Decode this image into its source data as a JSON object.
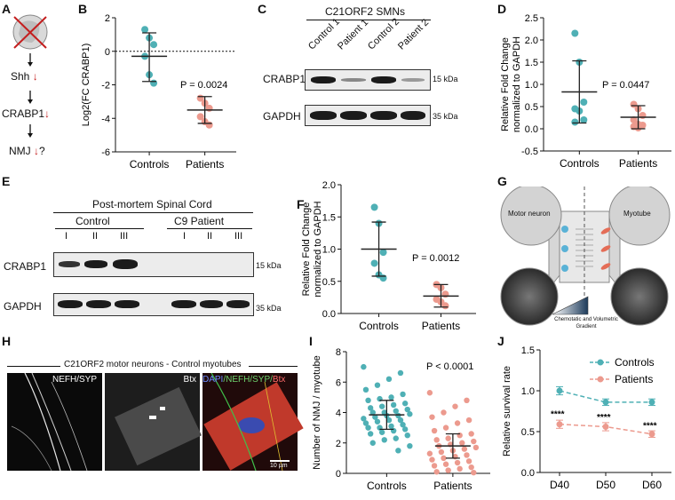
{
  "panel_labels": {
    "A": "A",
    "B": "B",
    "C": "C",
    "D": "D",
    "E": "E",
    "F": "F",
    "G": "G",
    "H": "H",
    "I": "I",
    "J": "J"
  },
  "pathway": {
    "shh": "Shh",
    "crabp1": "CRABP1",
    "nmj": "NMJ",
    "question": "?"
  },
  "colors": {
    "controls": "#4fb0b5",
    "patients": "#ec9a8e",
    "controls_line": "#1f7f86",
    "patients_line": "#d96a5c",
    "arrow_red": "#c41e1e",
    "gel_dark": "#1b1b1b"
  },
  "common": {
    "controls": "Controls",
    "patients": "Patients"
  },
  "blot_c": {
    "title": "C21ORF2 SMNs",
    "lanes": [
      "Control 1",
      "Patient 1",
      "Control 2",
      "Patient 2"
    ],
    "row1": "CRABP1",
    "row2": "GAPDH",
    "kda1": "15 kDa",
    "kda2": "35 kDa"
  },
  "blot_e": {
    "title": "Post-mortem Spinal Cord",
    "group1": "Control",
    "group2": "C9 Patient",
    "lanes1": [
      "I",
      "II",
      "III"
    ],
    "lanes2": [
      "I",
      "II",
      "III"
    ],
    "row1": "CRABP1",
    "row2": "GAPDH",
    "kda1": "15 kDa",
    "kda2": "35 kDa"
  },
  "device_g": {
    "left": "Motor neuron",
    "right": "Myotube",
    "gradient": "Chemotatic and Volumetric Gradient"
  },
  "micro_h": {
    "title": "C21ORF2 motor neurons - Control myotubes",
    "ch1": "NEFH/SYP",
    "ch2": "Btx",
    "ch3_dapi": "DAPI",
    "ch3_rest": "/NEFH/SYP/",
    "ch3_btx": "Btx",
    "scale": "10 µm"
  },
  "chart_data": [
    {
      "panel": "B",
      "type": "scatter",
      "ylabel": "Log2(FC CRABP1)",
      "categories": [
        "Controls",
        "Patients"
      ],
      "ylim": [
        -6,
        2
      ],
      "yticks": [
        -6,
        -4,
        -2,
        0,
        2
      ],
      "reference_line": 0,
      "annotation": "P = 0.0024",
      "series": [
        {
          "name": "Controls",
          "values": [
            1.3,
            0.8,
            0.4,
            -0.3,
            -1.4,
            -1.9
          ],
          "mean": -0.3,
          "sd_low": -1.8,
          "sd_high": 1.1
        },
        {
          "name": "Patients",
          "values": [
            -2.8,
            -3.1,
            -3.4,
            -3.9,
            -4.2,
            -4.4
          ],
          "mean": -3.5,
          "sd_low": -4.3,
          "sd_high": -2.7
        }
      ]
    },
    {
      "panel": "D",
      "type": "scatter",
      "ylabel": "Relative Fold Change normalized to GAPDH",
      "categories": [
        "Controls",
        "Patients"
      ],
      "ylim": [
        -0.5,
        2.5
      ],
      "yticks": [
        -0.5,
        0.0,
        0.5,
        1.0,
        1.5,
        2.0,
        2.5
      ],
      "annotation": "P = 0.0447",
      "series": [
        {
          "name": "Controls",
          "values": [
            2.15,
            1.5,
            0.6,
            0.45,
            0.4,
            0.2,
            0.15
          ],
          "mean": 0.83,
          "sd_low": 0.13,
          "sd_high": 1.53
        },
        {
          "name": "Patients",
          "values": [
            0.55,
            0.45,
            0.3,
            0.2,
            0.1,
            0.08,
            0.05,
            0.02
          ],
          "mean": 0.26,
          "sd_low": 0.0,
          "sd_high": 0.52
        }
      ]
    },
    {
      "panel": "F",
      "type": "scatter",
      "ylabel": "Relative Fold Change normalized to GAPDH",
      "categories": [
        "Controls",
        "Patients"
      ],
      "ylim": [
        0,
        2
      ],
      "yticks": [
        0.0,
        0.5,
        1.0,
        1.5,
        2.0
      ],
      "annotation": "P = 0.0012",
      "series": [
        {
          "name": "Controls",
          "values": [
            1.65,
            1.4,
            0.95,
            0.78,
            0.6,
            0.55
          ],
          "mean": 1.0,
          "sd_low": 0.58,
          "sd_high": 1.42
        },
        {
          "name": "Patients",
          "values": [
            0.45,
            0.4,
            0.3,
            0.22,
            0.18,
            0.12
          ],
          "mean": 0.27,
          "sd_low": 0.1,
          "sd_high": 0.45
        }
      ]
    },
    {
      "panel": "I",
      "type": "scatter",
      "ylabel": "Number of NMJ / myotube",
      "categories": [
        "Controls",
        "Patients"
      ],
      "ylim": [
        0,
        8
      ],
      "yticks": [
        0,
        2,
        4,
        6,
        8
      ],
      "annotation": "P < 0.0001",
      "series": [
        {
          "name": "Controls",
          "values": [
            7.0,
            6.6,
            6.2,
            5.8,
            5.5,
            5.2,
            5.0,
            4.9,
            4.8,
            4.6,
            4.5,
            4.4,
            4.3,
            4.2,
            4.1,
            4.0,
            4.0,
            3.9,
            3.8,
            3.8,
            3.7,
            3.6,
            3.5,
            3.5,
            3.4,
            3.3,
            3.2,
            3.1,
            3.0,
            3.0,
            2.9,
            2.8,
            2.7,
            2.6,
            2.5,
            2.3,
            2.2,
            2.0,
            1.8,
            1.5
          ],
          "mean": 3.85,
          "sd_low": 2.9,
          "sd_high": 4.8
        },
        {
          "name": "Patients",
          "values": [
            5.3,
            4.8,
            4.4,
            4.0,
            3.7,
            3.5,
            3.3,
            3.0,
            2.8,
            2.6,
            2.5,
            2.3,
            2.2,
            2.1,
            2.0,
            1.9,
            1.8,
            1.7,
            1.6,
            1.5,
            1.4,
            1.3,
            1.2,
            1.1,
            1.0,
            0.9,
            0.8,
            0.7,
            0.6,
            0.5,
            0.4,
            0.3,
            0.2,
            0.1,
            0.05
          ],
          "mean": 1.8,
          "sd_low": 1.0,
          "sd_high": 2.6
        }
      ]
    },
    {
      "panel": "J",
      "type": "line",
      "ylabel": "Relative survival rate",
      "categories": [
        "D40",
        "D50",
        "D60"
      ],
      "ylim": [
        0,
        1.5
      ],
      "yticks": [
        0.0,
        0.5,
        1.0,
        1.5
      ],
      "legend": "top-right",
      "significance": "****",
      "series": [
        {
          "name": "Controls",
          "values": [
            1.0,
            0.86,
            0.86
          ],
          "err": [
            0.05,
            0.04,
            0.04
          ]
        },
        {
          "name": "Patients",
          "values": [
            0.59,
            0.56,
            0.47
          ],
          "err": [
            0.05,
            0.05,
            0.04
          ]
        }
      ]
    }
  ]
}
